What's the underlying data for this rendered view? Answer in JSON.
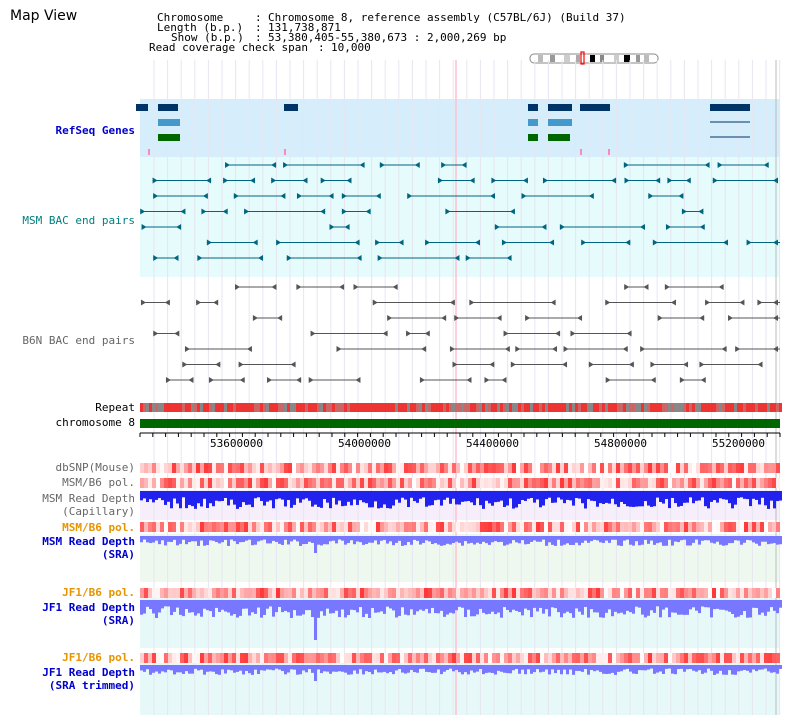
{
  "page": {
    "title": "Map View"
  },
  "header": {
    "chromosome_key": "Chromosome",
    "chromosome_val": "Chromosome 8, reference assembly (C57BL/6J) (Build 37)",
    "length_key": "Length (b.p.)",
    "length_val": "131,738,871",
    "show_key": "Show (b.p.)",
    "show_val": "53,380,405-55,380,673 : 2,000,269 bp",
    "coverage_key": "Read coverage check span",
    "coverage_val": "10,000"
  },
  "tracks": {
    "refseq": "RefSeq Genes",
    "msm_bac": "MSM BAC end pairs",
    "b6n_bac": "B6N BAC end pairs",
    "repeat": "Repeat",
    "chromosome": "chromosome 8",
    "dbsnp": "dbSNP(Mouse)",
    "msm_b6_pol_1": "MSM/B6 pol.",
    "msm_read_depth_cap_1": "MSM Read Depth",
    "msm_read_depth_cap_2": "(Capillary)",
    "msm_b6_pol_2": "MSM/B6 pol.",
    "msm_read_depth_sra_1": "MSM Read Depth",
    "msm_read_depth_sra_2": "(SRA)",
    "jf1_b6_pol_1": "JF1/B6 pol.",
    "jf1_read_depth_sra_1": "JF1 Read Depth",
    "jf1_read_depth_sra_2": "(SRA)",
    "jf1_b6_pol_2": "JF1/B6 pol.",
    "jf1_read_depth_trim_1": "JF1 Read Depth",
    "jf1_read_depth_trim_2": "(SRA trimmed)"
  },
  "axis": {
    "ticks": [
      "53600000",
      "54000000",
      "54400000",
      "54800000",
      "55200000"
    ]
  },
  "colors": {
    "refseq_bg": "#d6eefb",
    "bac_bg": "#e6fbfb",
    "gene_dark": "#003366",
    "gene_light": "#4499cc",
    "gene_green": "#006600",
    "msm_bac": "#006680",
    "b6n_bac": "#555555",
    "chromosome_bar": "#006600",
    "snp_red": "#ff3333",
    "depth_blue": "#2222ee",
    "depth_light": "#7777ff"
  }
}
